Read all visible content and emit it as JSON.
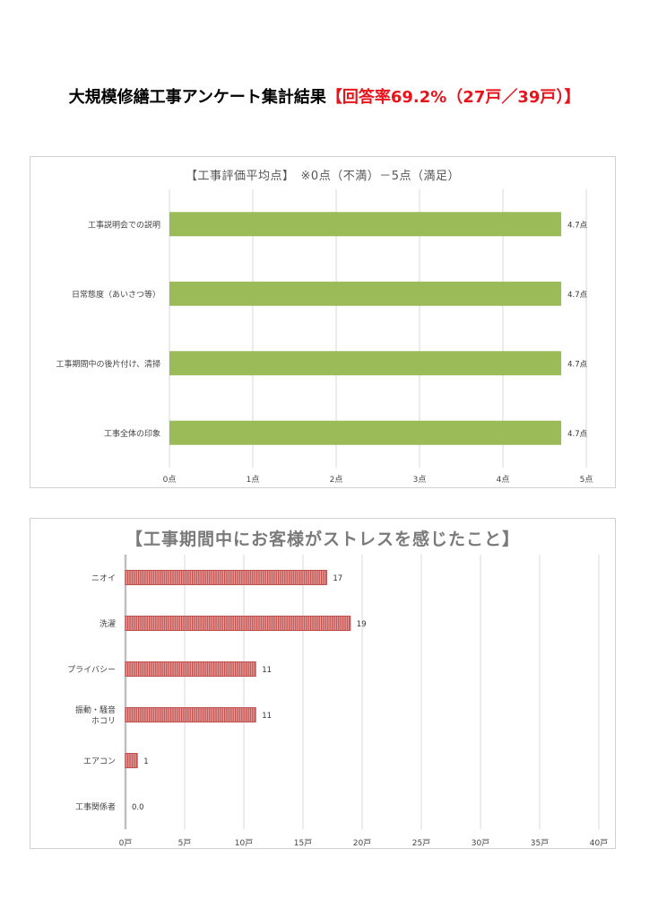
{
  "page": {
    "title": "大規模修繕工事アンケート集計結果",
    "response_rate": "【回答率69.2%（27戸／39戸）】"
  },
  "chart_data": [
    {
      "type": "bar",
      "orientation": "horizontal",
      "title": "【工事評価平均点】　※0点（不満）－5点（満足）",
      "categories": [
        "工事説明会での説明",
        "日常態度（あいさつ等）",
        "工事期間中の後片付け、清掃",
        "工事全体の印象"
      ],
      "values": [
        4.7,
        4.7,
        4.7,
        4.7
      ],
      "value_labels": [
        "4.7点",
        "4.7点",
        "4.7点",
        "4.7点"
      ],
      "xlim": [
        0,
        5
      ],
      "ticks": [
        "0点",
        "1点",
        "2点",
        "3点",
        "4点",
        "5点"
      ],
      "color": "#9bbb59",
      "grid": true
    },
    {
      "type": "bar",
      "orientation": "horizontal",
      "title": "【工事期間中にお客様がストレスを感じたこと】",
      "categories": [
        "ニオイ",
        "洗濯",
        "プライバシー",
        "振動・騒音\nホコリ",
        "エアコン",
        "工事関係者"
      ],
      "values": [
        17,
        19,
        11,
        11,
        1,
        0
      ],
      "value_labels": [
        "17",
        "19",
        "11",
        "11",
        "1",
        "0.0"
      ],
      "xlim": [
        0,
        40
      ],
      "ticks": [
        "0戸",
        "5戸",
        "10戸",
        "15戸",
        "20戸",
        "25戸",
        "30戸",
        "35戸",
        "40戸"
      ],
      "color": "#c0504d",
      "grid": true
    }
  ]
}
